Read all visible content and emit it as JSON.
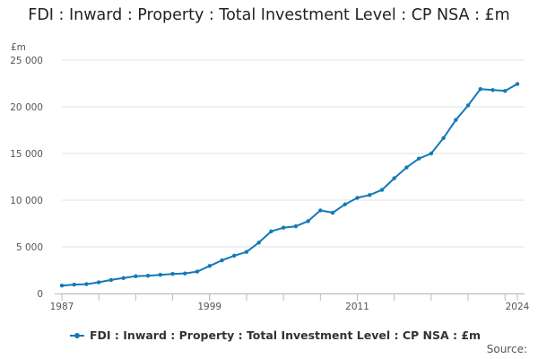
{
  "chart_data": {
    "type": "line",
    "title": "FDI : Inward : Property : Total Investment Level : CP NSA : £m",
    "ylabel": "£m",
    "xlabel": "",
    "ylim": [
      0,
      25000
    ],
    "xlim": [
      1987,
      2024
    ],
    "yticks": [
      0,
      5000,
      10000,
      15000,
      20000,
      25000
    ],
    "ytick_labels": [
      "0",
      "5 000",
      "10 000",
      "15 000",
      "20 000",
      "25 000"
    ],
    "xticks": [
      1987,
      1999,
      2011,
      2024
    ],
    "xtick_labels": [
      "1987",
      "1999",
      "2011",
      "2024"
    ],
    "grid": true,
    "legend_position": "bottom-left",
    "series": [
      {
        "name": "FDI : Inward : Property : Total Investment Level : CP NSA : £m",
        "color": "#1479b8",
        "x": [
          1987,
          1988,
          1989,
          1990,
          1991,
          1992,
          1993,
          1994,
          1995,
          1996,
          1997,
          1998,
          1999,
          2000,
          2001,
          2002,
          2003,
          2004,
          2005,
          2006,
          2007,
          2008,
          2009,
          2010,
          2011,
          2012,
          2013,
          2014,
          2015,
          2016,
          2017,
          2018,
          2019,
          2020,
          2021,
          2022,
          2023,
          2024
        ],
        "values": [
          850,
          950,
          1000,
          1200,
          1450,
          1650,
          1850,
          1900,
          2000,
          2100,
          2150,
          2350,
          2950,
          3550,
          4050,
          4450,
          5450,
          6650,
          7050,
          7200,
          7750,
          8900,
          8650,
          9550,
          10250,
          10550,
          11100,
          12350,
          13500,
          14450,
          15000,
          16650,
          18600,
          20150,
          21900,
          21800,
          21700,
          22450
        ]
      }
    ]
  },
  "legend": {
    "label": "FDI : Inward : Property : Total Investment Level : CP NSA : £m"
  },
  "source": {
    "label": "Source:"
  }
}
